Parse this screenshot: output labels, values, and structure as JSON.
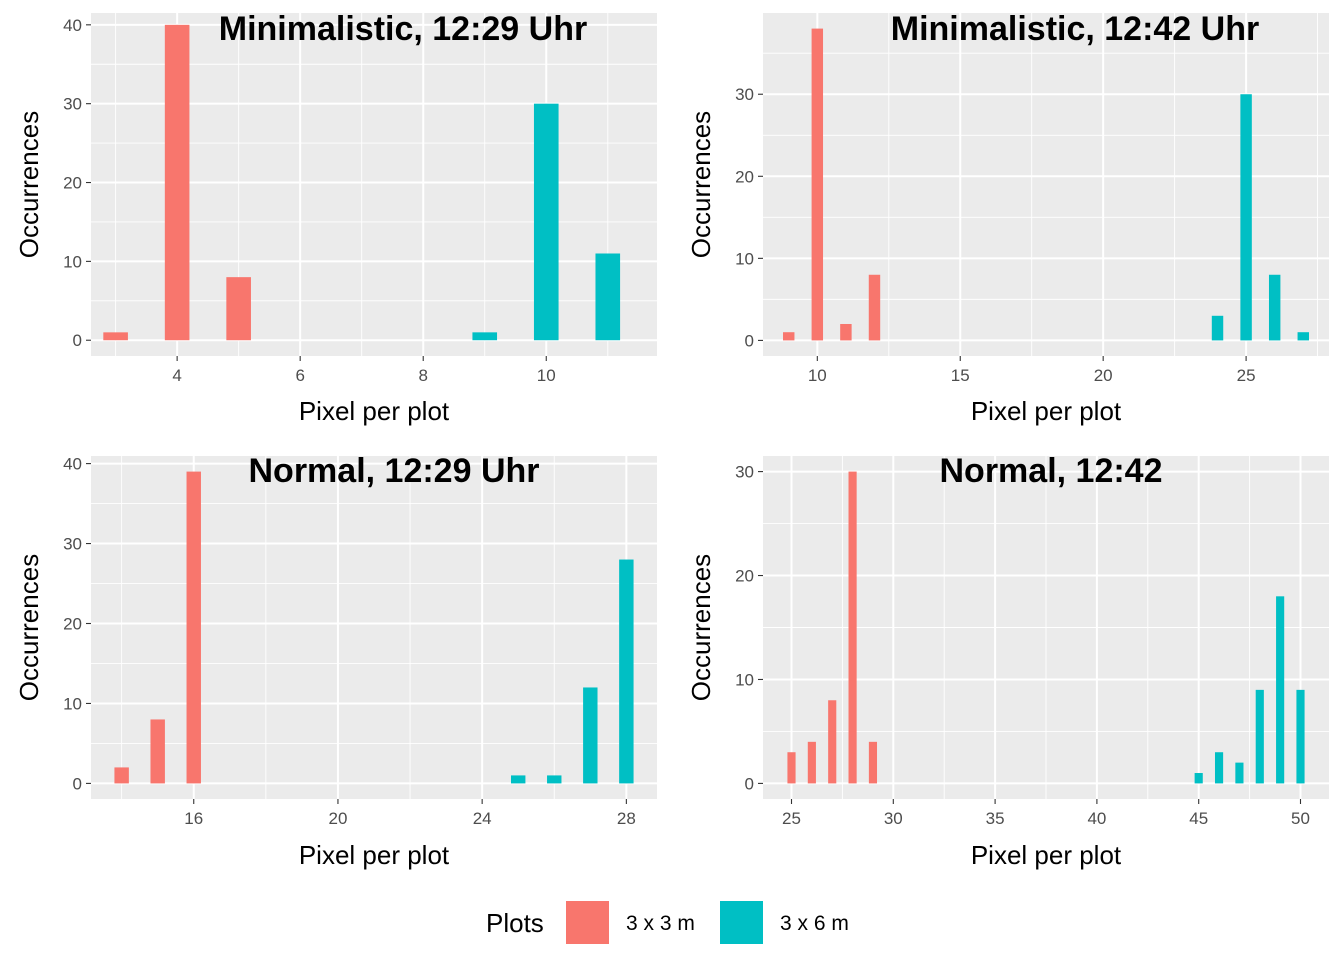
{
  "colors": {
    "3x3": "#F8766D",
    "3x6": "#00BFC4",
    "panel_bg": "#EBEBEB",
    "grid": "#FFFFFF"
  },
  "legend": {
    "title": "Plots",
    "items": [
      {
        "label": "3 x 3 m",
        "color": "#F8766D"
      },
      {
        "label": "3 x 6 m",
        "color": "#00BFC4"
      }
    ]
  },
  "chart_data": [
    {
      "type": "bar",
      "title": "Minimalistic, 12:29 Uhr",
      "xlabel": "Pixel per plot",
      "ylabel": "Occurrences",
      "xlim": [
        2.6,
        11.8
      ],
      "ylim": [
        -2,
        41.5
      ],
      "xticks": [
        4,
        6,
        8,
        10
      ],
      "yticks": [
        0,
        10,
        20,
        30,
        40
      ],
      "bar_width": 0.4,
      "series": [
        {
          "name": "3 x 3 m",
          "color": "#F8766D",
          "x": [
            3,
            4,
            5
          ],
          "values": [
            1,
            40,
            8
          ]
        },
        {
          "name": "3 x 6 m",
          "color": "#00BFC4",
          "x": [
            9,
            10,
            11
          ],
          "values": [
            1,
            30,
            11
          ]
        }
      ]
    },
    {
      "type": "bar",
      "title": "Minimalistic, 12:42 Uhr",
      "xlabel": "Pixel per plot",
      "ylabel": "Occurrences",
      "xlim": [
        8.1,
        27.9
      ],
      "ylim": [
        -1.9,
        39.9
      ],
      "xticks": [
        10,
        15,
        20,
        25
      ],
      "yticks": [
        0,
        10,
        20,
        30
      ],
      "bar_width": 0.4,
      "series": [
        {
          "name": "3 x 3 m",
          "color": "#F8766D",
          "x": [
            9,
            10,
            11,
            12
          ],
          "values": [
            1,
            38,
            2,
            8
          ]
        },
        {
          "name": "3 x 6 m",
          "color": "#00BFC4",
          "x": [
            24,
            25,
            26,
            27
          ],
          "values": [
            3,
            30,
            8,
            1
          ]
        }
      ]
    },
    {
      "type": "bar",
      "title": "Normal, 12:29 Uhr",
      "xlabel": "Pixel per plot",
      "ylabel": "Occurrences",
      "xlim": [
        13.15,
        28.85
      ],
      "ylim": [
        -1.95,
        40.95
      ],
      "xticks": [
        16,
        20,
        24,
        28
      ],
      "yticks": [
        0,
        10,
        20,
        30,
        40
      ],
      "bar_width": 0.4,
      "series": [
        {
          "name": "3 x 3 m",
          "color": "#F8766D",
          "x": [
            14,
            15,
            16
          ],
          "values": [
            2,
            8,
            39
          ]
        },
        {
          "name": "3 x 6 m",
          "color": "#00BFC4",
          "x": [
            25,
            26,
            27,
            28
          ],
          "values": [
            1,
            1,
            12,
            28
          ]
        }
      ]
    },
    {
      "type": "bar",
      "title": "Normal, 12:42",
      "xlabel": "Pixel per plot",
      "ylabel": "Occurrences",
      "xlim": [
        23.6,
        51.4
      ],
      "ylim": [
        -1.5,
        31.5
      ],
      "xticks": [
        25,
        30,
        35,
        40,
        45,
        50
      ],
      "yticks": [
        0,
        10,
        20,
        30
      ],
      "bar_width": 0.4,
      "series": [
        {
          "name": "3 x 3 m",
          "color": "#F8766D",
          "x": [
            25,
            26,
            27,
            28,
            29
          ],
          "values": [
            3,
            4,
            8,
            30,
            4
          ]
        },
        {
          "name": "3 x 6 m",
          "color": "#00BFC4",
          "x": [
            45,
            46,
            47,
            48,
            49,
            50
          ],
          "values": [
            1,
            3,
            2,
            9,
            18,
            9
          ]
        }
      ]
    }
  ]
}
